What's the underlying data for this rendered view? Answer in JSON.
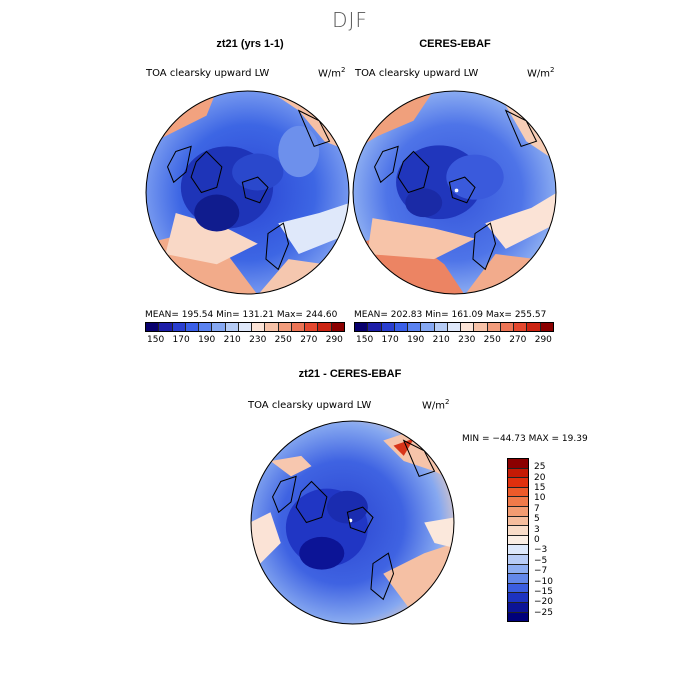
{
  "season": "DJF",
  "panels": [
    {
      "title": "zt21 (yrs 1-1)",
      "variable": "TOA clearsky upward LW",
      "units_base": "W/m",
      "units_exp": "2",
      "stats": "MEAN= 195.54   Min= 131.21   Max= 244.60"
    },
    {
      "title": "CERES-EBAF",
      "variable": "TOA clearsky upward LW",
      "units_base": "W/m",
      "units_exp": "2",
      "stats": "MEAN= 202.83   Min= 161.09   Max= 255.57"
    }
  ],
  "colorbar_top": {
    "ticks": [
      "150",
      "170",
      "190",
      "210",
      "230",
      "250",
      "270",
      "290"
    ],
    "colors": [
      "#08006e",
      "#1d1ea8",
      "#2a3fd0",
      "#3a5fe8",
      "#5a82f0",
      "#86a8f2",
      "#b6ccf6",
      "#dfe8fa",
      "#fbe3d6",
      "#f7c2a8",
      "#f29c7c",
      "#ec7455",
      "#e4482f",
      "#cc2412",
      "#8b0000"
    ]
  },
  "diff": {
    "title": "zt21 - CERES-EBAF",
    "variable": "TOA clearsky upward LW",
    "units_base": "W/m",
    "units_exp": "2",
    "stats": "MIN = −44.73 MAX =  19.39",
    "colorbar": {
      "ticks": [
        "25",
        "20",
        "15",
        "10",
        "7",
        "5",
        "3",
        "0",
        "−3",
        "−5",
        "−7",
        "−10",
        "−15",
        "−20",
        "−25"
      ],
      "colors": [
        "#8b0000",
        "#c41a05",
        "#e0300e",
        "#ed5a2a",
        "#f07a4a",
        "#f39c72",
        "#f6bd9d",
        "#f9dcc8",
        "#fbeee4",
        "#dde8fb",
        "#b8ccf6",
        "#8eaef2",
        "#6388ea",
        "#3b5ee0",
        "#1d33c0",
        "#0c1496",
        "#00007a"
      ]
    }
  }
}
